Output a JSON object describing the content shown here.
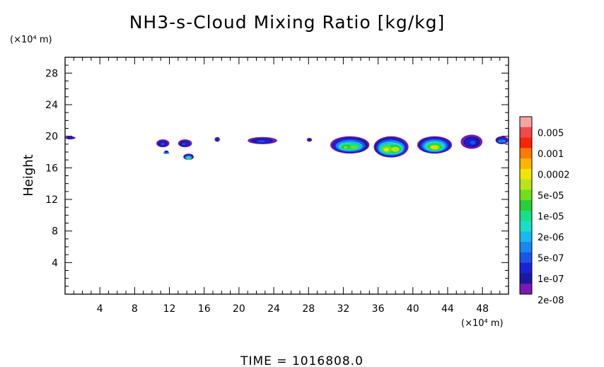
{
  "chart_data": {
    "type": "heatmap",
    "title": "NH3-s-Cloud Mixing Ratio [kg/kg]",
    "ylabel": "Height",
    "xlabel": "",
    "x_unit": "(×10⁴ m)",
    "y_unit": "(×10⁴ m)",
    "xlim": [
      0,
      51
    ],
    "ylim": [
      0,
      30
    ],
    "x_ticks": [
      "4",
      "8",
      "12",
      "16",
      "20",
      "24",
      "28",
      "32",
      "36",
      "40",
      "44",
      "48"
    ],
    "y_ticks": [
      "4",
      "8",
      "12",
      "16",
      "20",
      "24",
      "28"
    ],
    "colorbar": {
      "labels": [
        "0.005",
        "0.001",
        "0.0002",
        "5e-05",
        "1e-05",
        "2e-06",
        "5e-07",
        "1e-07",
        "2e-08"
      ],
      "colors": [
        "#f7a3a3",
        "#f04a4a",
        "#ff2200",
        "#ff7a00",
        "#ffb400",
        "#f2e600",
        "#b8e61a",
        "#6fe01a",
        "#26d036",
        "#18e08a",
        "#18e0c4",
        "#18b8f0",
        "#1a86f0",
        "#1a54e8",
        "#1a22d8",
        "#1a1aa0",
        "#7a1ab0"
      ]
    },
    "cloud_regions": [
      {
        "x": [
          0.0,
          1.2
        ],
        "y": [
          19.6,
          20.0
        ],
        "max_level": "2e-08"
      },
      {
        "x": [
          10.5,
          12.0
        ],
        "y": [
          18.6,
          19.6
        ],
        "max_level": "1e-07"
      },
      {
        "x": [
          11.4,
          11.9
        ],
        "y": [
          17.8,
          18.2
        ],
        "max_level": "2e-06"
      },
      {
        "x": [
          13.0,
          14.6
        ],
        "y": [
          18.6,
          19.6
        ],
        "max_level": "1e-07"
      },
      {
        "x": [
          13.6,
          14.8
        ],
        "y": [
          17.0,
          17.8
        ],
        "max_level": "5e-05"
      },
      {
        "x": [
          17.2,
          17.8
        ],
        "y": [
          19.3,
          19.9
        ],
        "max_level": "1e-07"
      },
      {
        "x": [
          21.0,
          24.4
        ],
        "y": [
          19.0,
          19.9
        ],
        "max_level": "1e-07"
      },
      {
        "x": [
          27.8,
          28.4
        ],
        "y": [
          19.3,
          19.8
        ],
        "max_level": "2e-08"
      },
      {
        "x": [
          30.5,
          35.0
        ],
        "y": [
          17.8,
          20.0
        ],
        "max_level": "5e-05"
      },
      {
        "x": [
          35.5,
          39.5
        ],
        "y": [
          17.3,
          20.0
        ],
        "max_level": "0.0002"
      },
      {
        "x": [
          40.5,
          44.5
        ],
        "y": [
          17.8,
          20.0
        ],
        "max_level": "0.0002"
      },
      {
        "x": [
          45.5,
          48.0
        ],
        "y": [
          18.4,
          20.2
        ],
        "max_level": "1e-07"
      },
      {
        "x": [
          49.5,
          51.0
        ],
        "y": [
          19.0,
          20.0
        ],
        "max_level": "5e-07"
      }
    ]
  },
  "time_label": "TIME = 1016808.0"
}
